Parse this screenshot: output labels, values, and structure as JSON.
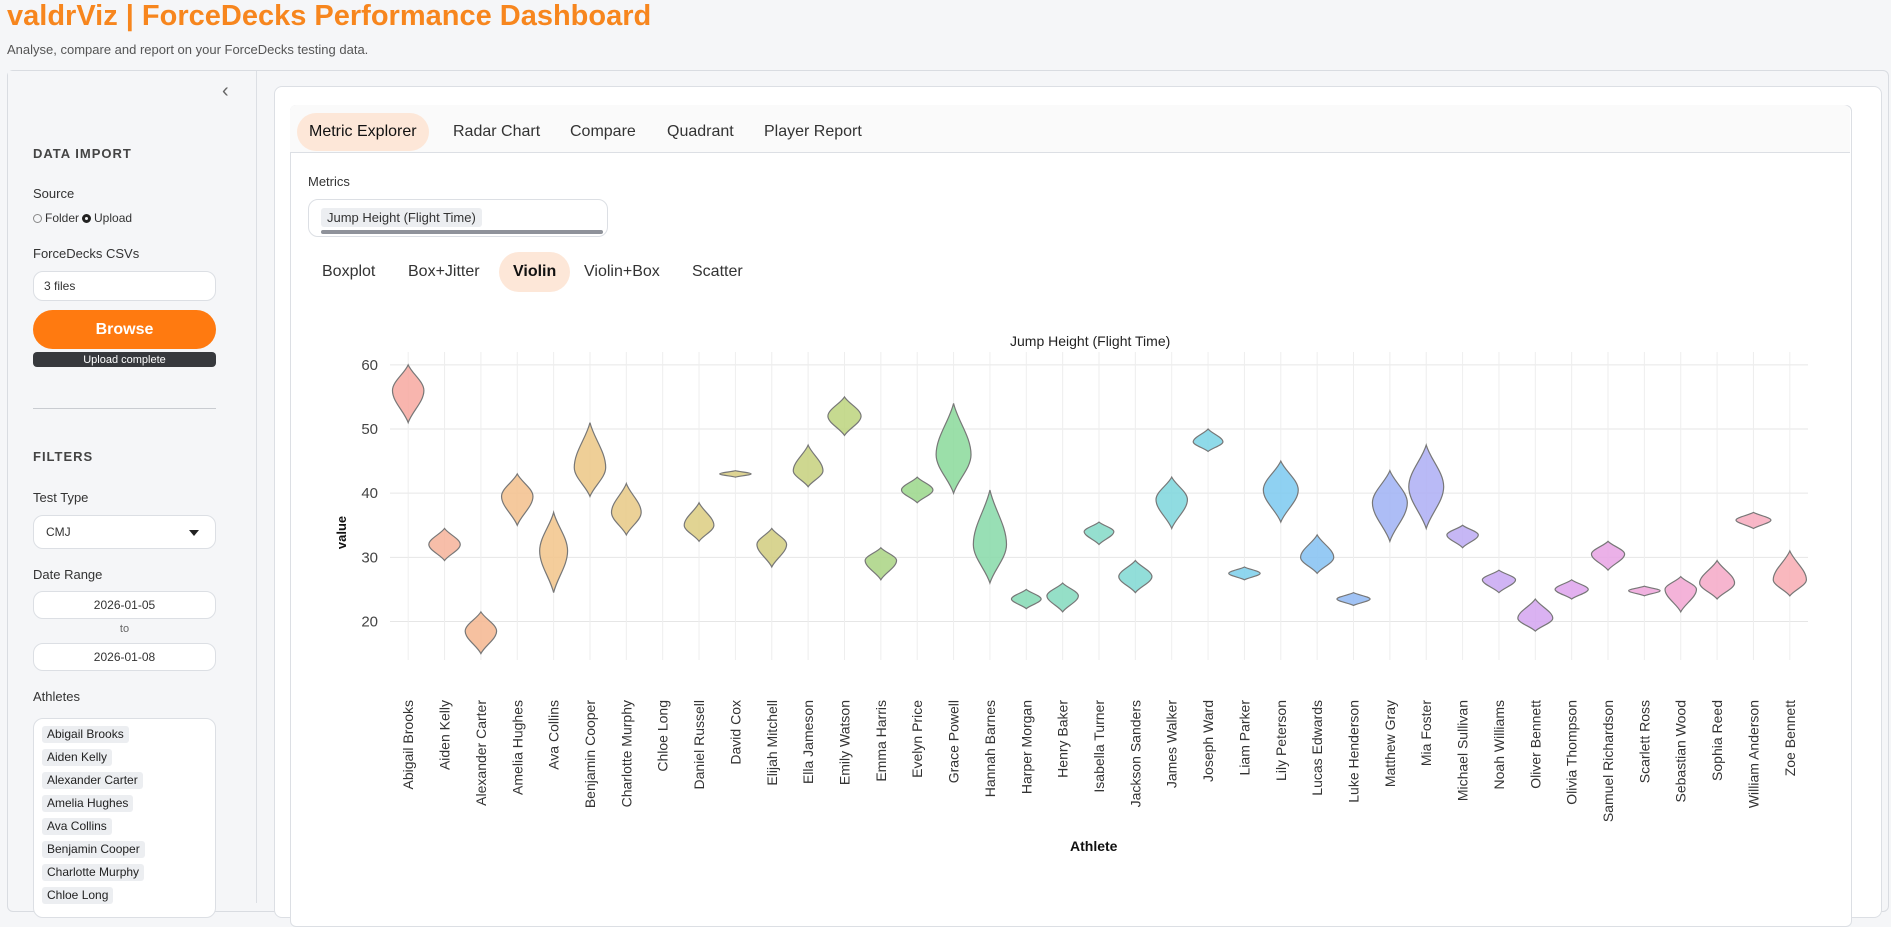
{
  "header": {
    "title": "valdrViz | ForceDecks Performance Dashboard",
    "subtitle": "Analyse, compare and report on your ForceDecks testing data."
  },
  "sidebar": {
    "data_import_heading": "DATA IMPORT",
    "source_label": "Source",
    "source_options": [
      "Folder",
      "Upload"
    ],
    "source_selected": "Upload",
    "csv_label": "ForceDecks CSVs",
    "csv_value": "3 files",
    "browse_label": "Browse",
    "upload_status": "Upload complete",
    "filters_heading": "FILTERS",
    "test_type_label": "Test Type",
    "test_type_value": "CMJ",
    "date_range_label": "Date Range",
    "date_start": "2026-01-05",
    "date_to": "to",
    "date_end": "2026-01-08",
    "athletes_label": "Athletes",
    "athletes_selected": [
      "Abigail Brooks",
      "Aiden Kelly",
      "Alexander Carter",
      "Amelia Hughes",
      "Ava Collins",
      "Benjamin Cooper",
      "Charlotte Murphy",
      "Chloe Long"
    ]
  },
  "tabs": [
    "Metric Explorer",
    "Radar Chart",
    "Compare",
    "Quadrant",
    "Player Report"
  ],
  "active_tab": "Metric Explorer",
  "metrics_label": "Metrics",
  "metric_selected": "Jump Height (Flight Time)",
  "plot_types": [
    "Boxplot",
    "Box+Jitter",
    "Violin",
    "Violin+Box",
    "Scatter"
  ],
  "active_plot_type": "Violin",
  "chart_data": {
    "type": "violin",
    "title": "Jump Height (Flight Time)",
    "xlabel": "Athlete",
    "ylabel": "value",
    "ylim": [
      14,
      62
    ],
    "yticks": [
      20,
      30,
      40,
      50,
      60
    ],
    "grid": true,
    "series": [
      {
        "name": "Abigail Brooks",
        "min": 51,
        "max": 60,
        "center": 56,
        "width": 0.9,
        "color": "#f7a8a0"
      },
      {
        "name": "Aiden Kelly",
        "min": 29.5,
        "max": 34.5,
        "center": 32,
        "width": 0.9,
        "color": "#f6b39a"
      },
      {
        "name": "Alexander Carter",
        "min": 15,
        "max": 21.5,
        "center": 18.5,
        "width": 0.9,
        "color": "#f5b68f"
      },
      {
        "name": "Amelia Hughes",
        "min": 35,
        "max": 43,
        "center": 39.5,
        "width": 0.9,
        "color": "#f3c08c"
      },
      {
        "name": "Ava Collins",
        "min": 24.5,
        "max": 37,
        "center": 31,
        "width": 0.8,
        "color": "#f2c48a"
      },
      {
        "name": "Benjamin Cooper",
        "min": 39.5,
        "max": 51,
        "center": 44,
        "width": 0.9,
        "color": "#ecc785"
      },
      {
        "name": "Charlotte Murphy",
        "min": 33.5,
        "max": 41.5,
        "center": 37,
        "width": 0.85,
        "color": "#e7c985"
      },
      {
        "name": "Chloe Long",
        "min": null,
        "max": null,
        "center": null,
        "width": 0,
        "color": "#e2cb85"
      },
      {
        "name": "Daniel Russell",
        "min": 32.5,
        "max": 38.5,
        "center": 35,
        "width": 0.85,
        "color": "#dccc80"
      },
      {
        "name": "David Cox",
        "min": 42.5,
        "max": 43.5,
        "center": 43,
        "width": 0.9,
        "color": "#d8cd80"
      },
      {
        "name": "Elijah Mitchell",
        "min": 28.5,
        "max": 34.5,
        "center": 32,
        "width": 0.85,
        "color": "#d1cd7e"
      },
      {
        "name": "Ella Jameson",
        "min": 41,
        "max": 47.5,
        "center": 43.5,
        "width": 0.85,
        "color": "#c5d07d"
      },
      {
        "name": "Emily Watson",
        "min": 49,
        "max": 55,
        "center": 52,
        "width": 0.95,
        "color": "#bcd37c"
      },
      {
        "name": "Emma Harris",
        "min": 26.5,
        "max": 31.5,
        "center": 29.5,
        "width": 0.9,
        "color": "#a9d483"
      },
      {
        "name": "Evelyn Price",
        "min": 38.5,
        "max": 42.5,
        "center": 40.5,
        "width": 0.9,
        "color": "#9ad78a"
      },
      {
        "name": "Grace Powell",
        "min": 40,
        "max": 54,
        "center": 46,
        "width": 1.0,
        "color": "#8ad99a"
      },
      {
        "name": "Hannah Barnes",
        "min": 26,
        "max": 40.5,
        "center": 32,
        "width": 0.95,
        "color": "#86d9a8"
      },
      {
        "name": "Harper Morgan",
        "min": 22,
        "max": 25,
        "center": 23.5,
        "width": 0.85,
        "color": "#84d9b4"
      },
      {
        "name": "Henry Baker",
        "min": 21.5,
        "max": 26,
        "center": 24,
        "width": 0.9,
        "color": "#83d9bd"
      },
      {
        "name": "Isabella Turner",
        "min": 32,
        "max": 35.5,
        "center": 34,
        "width": 0.85,
        "color": "#82d9c7"
      },
      {
        "name": "Jackson Sanders",
        "min": 24.5,
        "max": 29.5,
        "center": 27,
        "width": 0.95,
        "color": "#7fd8d2"
      },
      {
        "name": "James Walker",
        "min": 34.5,
        "max": 42.5,
        "center": 39,
        "width": 0.9,
        "color": "#7dd6dc"
      },
      {
        "name": "Joseph Ward",
        "min": 46.5,
        "max": 50,
        "center": 48,
        "width": 0.85,
        "color": "#7bd3e5"
      },
      {
        "name": "Liam Parker",
        "min": 26.5,
        "max": 28.5,
        "center": 27.5,
        "width": 0.9,
        "color": "#7bcfeb"
      },
      {
        "name": "Lily Peterson",
        "min": 35.5,
        "max": 45,
        "center": 40.5,
        "width": 1.0,
        "color": "#7bc9f0"
      },
      {
        "name": "Lucas Edwards",
        "min": 27.5,
        "max": 33.5,
        "center": 30,
        "width": 0.95,
        "color": "#84c1f2"
      },
      {
        "name": "Luke Henderson",
        "min": 22.5,
        "max": 24.5,
        "center": 23.5,
        "width": 0.95,
        "color": "#90b9f3"
      },
      {
        "name": "Matthew Gray",
        "min": 32.5,
        "max": 43.5,
        "center": 38.5,
        "width": 1.0,
        "color": "#9fb2f4"
      },
      {
        "name": "Mia Foster",
        "min": 34.5,
        "max": 47.5,
        "center": 41,
        "width": 1.0,
        "color": "#adaef4"
      },
      {
        "name": "Michael Sullivan",
        "min": 31.5,
        "max": 35,
        "center": 33.5,
        "width": 0.9,
        "color": "#bcaaf3"
      },
      {
        "name": "Noah Williams",
        "min": 24.5,
        "max": 28,
        "center": 26.5,
        "width": 0.95,
        "color": "#c8a7f2"
      },
      {
        "name": "Oliver Bennett",
        "min": 18.5,
        "max": 23.5,
        "center": 20.5,
        "width": 1.0,
        "color": "#d3a5f0"
      },
      {
        "name": "Olivia Thompson",
        "min": 23.5,
        "max": 26.5,
        "center": 25,
        "width": 0.95,
        "color": "#dea3ed"
      },
      {
        "name": "Samuel Richardson",
        "min": 28,
        "max": 32.5,
        "center": 30.5,
        "width": 0.95,
        "color": "#e7a3e4"
      },
      {
        "name": "Scarlett Ross",
        "min": 24,
        "max": 25.5,
        "center": 24.8,
        "width": 0.9,
        "color": "#eea5db"
      },
      {
        "name": "Sebastian Wood",
        "min": 21.5,
        "max": 27,
        "center": 25,
        "width": 0.9,
        "color": "#f2a6d2"
      },
      {
        "name": "Sophia Reed",
        "min": 23.5,
        "max": 29.5,
        "center": 26,
        "width": 1.0,
        "color": "#f5a8c7"
      },
      {
        "name": "William Anderson",
        "min": 34.5,
        "max": 37,
        "center": 35.8,
        "width": 1.0,
        "color": "#f7aabd"
      },
      {
        "name": "Zoe Bennett",
        "min": 24,
        "max": 31,
        "center": 26.5,
        "width": 0.95,
        "color": "#f8acb3"
      }
    ]
  }
}
